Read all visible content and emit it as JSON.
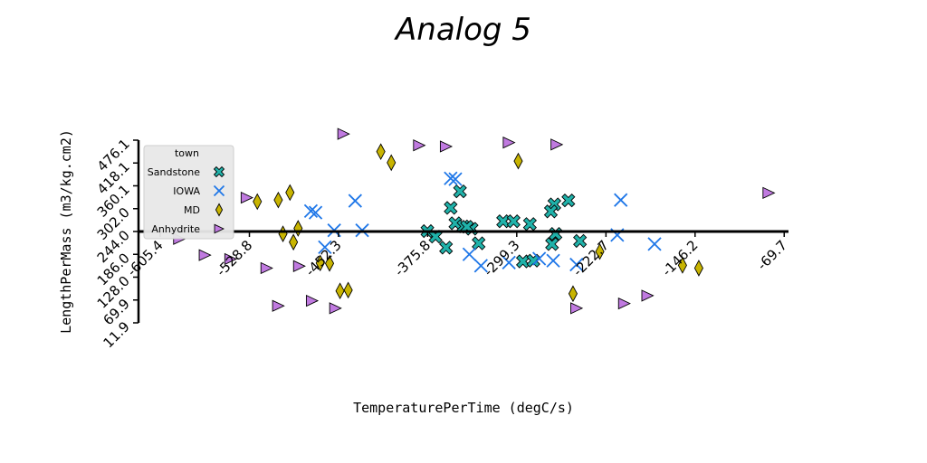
{
  "chart_data": {
    "type": "scatter",
    "title": "Analog 5",
    "xlabel": "TemperaturePerTime (degC/s)",
    "ylabel": "LengthPerMass (m3/kg.cm2)",
    "xlim": [
      -624,
      -66
    ],
    "ylim": [
      11.9,
      476.1
    ],
    "x_ticks": [
      "-605.4",
      "-528.8",
      "-452.3",
      "-375.8",
      "-299.3",
      "-222.7",
      "-146.2",
      "-69.7"
    ],
    "x_tick_values": [
      -605.4,
      -528.8,
      -452.3,
      -375.8,
      -299.3,
      -222.7,
      -146.2,
      -69.7
    ],
    "y_ticks": [
      "11.9",
      "69.9",
      "128.0",
      "186.0",
      "244.0",
      "302.0",
      "360.1",
      "418.1",
      "476.1"
    ],
    "y_tick_values": [
      11.9,
      69.9,
      128.0,
      186.0,
      244.0,
      302.0,
      360.1,
      418.1,
      476.1
    ],
    "x_axis_crosses_y_at": 244.0,
    "grid": false,
    "legend": {
      "title": "town",
      "position": "top-left"
    },
    "series": [
      {
        "name": "Sandstone",
        "marker": "x-filled",
        "color": "#20b2aa",
        "points": [
          [
            -376,
            245
          ],
          [
            -369,
            231
          ],
          [
            -356,
            304
          ],
          [
            -352,
            265
          ],
          [
            -348,
            346
          ],
          [
            -345,
            257
          ],
          [
            -338,
            251
          ],
          [
            -342,
            256
          ],
          [
            -360,
            203
          ],
          [
            -332,
            214
          ],
          [
            -311,
            270
          ],
          [
            -302,
            270
          ],
          [
            -294,
            168
          ],
          [
            -285,
            170
          ],
          [
            -288,
            263
          ],
          [
            -267,
            313
          ],
          [
            -270,
            295
          ],
          [
            -266,
            238
          ],
          [
            -269,
            212
          ],
          [
            -255,
            323
          ],
          [
            -245,
            220
          ]
        ]
      },
      {
        "name": "IOWA",
        "marker": "x",
        "color": "#1f77e8",
        "points": [
          [
            -476,
            296
          ],
          [
            -472,
            292
          ],
          [
            -464,
            204
          ],
          [
            -456,
            247
          ],
          [
            -438,
            322
          ],
          [
            -432,
            247
          ],
          [
            -356,
            379
          ],
          [
            -352,
            377
          ],
          [
            -340,
            186
          ],
          [
            -330,
            157
          ],
          [
            -306,
            165
          ],
          [
            -280,
            175
          ],
          [
            -268,
            170
          ],
          [
            -248,
            160
          ],
          [
            -213,
            235
          ],
          [
            -210,
            324
          ],
          [
            -181,
            212
          ]
        ]
      },
      {
        "name": "MD",
        "marker": "diamond",
        "color": "#c8b400",
        "points": [
          [
            -522,
            320
          ],
          [
            -504,
            324
          ],
          [
            -500,
            238
          ],
          [
            -494,
            343
          ],
          [
            -491,
            217
          ],
          [
            -487,
            252
          ],
          [
            -468,
            164
          ],
          [
            -460,
            163
          ],
          [
            -451,
            93
          ],
          [
            -444,
            95
          ],
          [
            -416,
            447
          ],
          [
            -407,
            419
          ],
          [
            -298,
            423
          ],
          [
            -251,
            86
          ],
          [
            -228,
            193
          ],
          [
            -157,
            158
          ],
          [
            -143,
            151
          ]
        ]
      },
      {
        "name": "Anhydrite",
        "marker": "triangle-right",
        "color": "#c07ae0",
        "points": [
          [
            -589,
            225
          ],
          [
            -567,
            184
          ],
          [
            -545,
            174
          ],
          [
            -531,
            330
          ],
          [
            -514,
            151
          ],
          [
            -504,
            55
          ],
          [
            -486,
            156
          ],
          [
            -475,
            68
          ],
          [
            -455,
            49
          ],
          [
            -448,
            492
          ],
          [
            -383,
            463
          ],
          [
            -360,
            460
          ],
          [
            -306,
            470
          ],
          [
            -265,
            465
          ],
          [
            -248,
            49
          ],
          [
            -207,
            61
          ],
          [
            -187,
            81
          ],
          [
            -83,
            342
          ]
        ]
      }
    ]
  }
}
